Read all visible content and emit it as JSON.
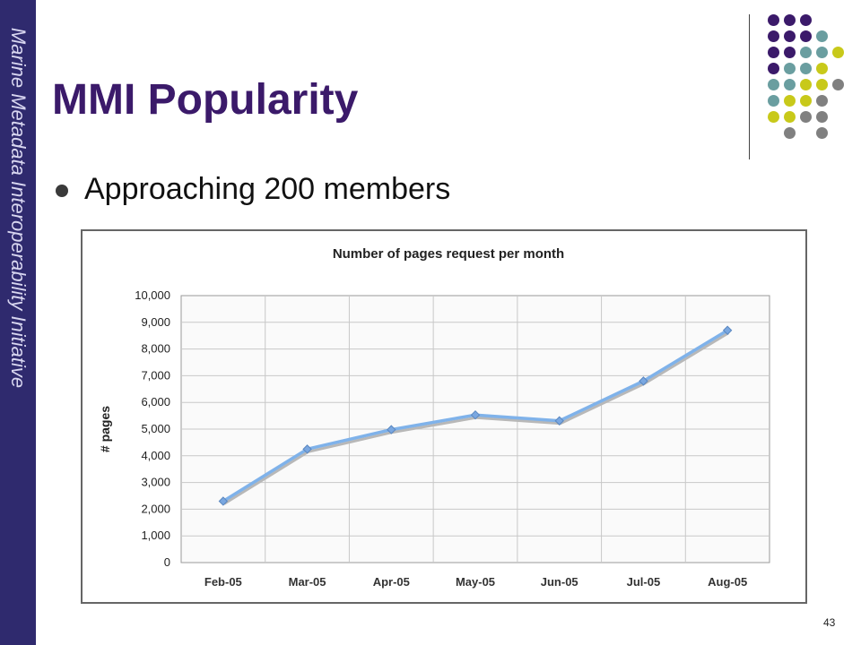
{
  "sidebar": {
    "text": "Marine Metadata Interoperability Initiative"
  },
  "slide": {
    "title": "MMI Popularity",
    "bullets": [
      "Approaching 200 members"
    ],
    "page_number": "43"
  },
  "colors": {
    "purple": "#3b1a6a",
    "teal": "#6a9ea0",
    "yellow": "#c8c91a",
    "gray": "#808080",
    "line": "#7fb2ea"
  },
  "chart_data": {
    "type": "line",
    "title": "Number of pages request per month",
    "xlabel": "",
    "ylabel": "# pages",
    "categories": [
      "Feb-05",
      "Mar-05",
      "Apr-05",
      "May-05",
      "Jun-05",
      "Jul-05",
      "Aug-05"
    ],
    "values": [
      2300,
      4250,
      4980,
      5530,
      5310,
      6800,
      8700
    ],
    "ylim": [
      0,
      10000
    ],
    "yticks": [
      "0",
      "1,000",
      "2,000",
      "3,000",
      "4,000",
      "5,000",
      "6,000",
      "7,000",
      "8,000",
      "9,000",
      "10,000"
    ],
    "grid": true,
    "legend": "none"
  }
}
